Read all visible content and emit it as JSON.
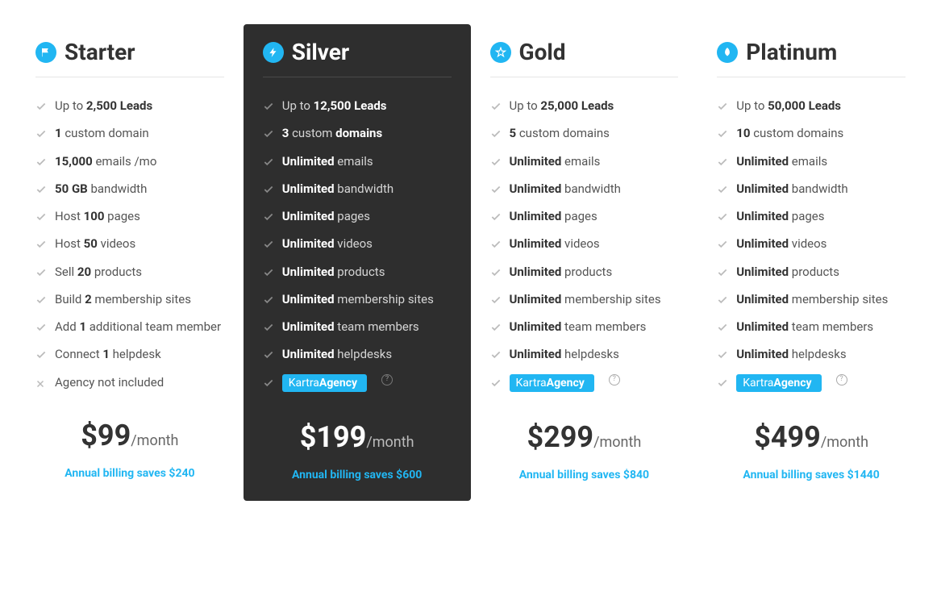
{
  "colors": {
    "accent": "#21b6f2",
    "featured_bg": "#2e2e2e",
    "text_dark": "#333333",
    "text_muted": "#555555",
    "check_light": "#bbbbbb",
    "check_dark": "#888888",
    "border_light": "#e5e5e5",
    "border_dark": "#4a4a4a"
  },
  "price_suffix": "/month",
  "plans": [
    {
      "id": "starter",
      "title": "Starter",
      "icon": "flag",
      "featured": false,
      "price": "$99",
      "annual_note": "Annual billing saves $240",
      "features": [
        {
          "type": "check",
          "html": "Up to <strong>2,500 Leads</strong>"
        },
        {
          "type": "check",
          "html": "<strong>1</strong> custom domain"
        },
        {
          "type": "check",
          "html": "<strong>15,000</strong> emails /mo"
        },
        {
          "type": "check",
          "html": "<strong>50 GB</strong> bandwidth"
        },
        {
          "type": "check",
          "html": "Host <strong>100</strong> pages"
        },
        {
          "type": "check",
          "html": "Host <strong>50</strong> videos"
        },
        {
          "type": "check",
          "html": "Sell <strong>20</strong> products"
        },
        {
          "type": "check",
          "html": "Build <strong>2</strong> membership sites"
        },
        {
          "type": "check",
          "html": "Add <strong>1</strong> additional team member"
        },
        {
          "type": "check",
          "html": "Connect <strong>1</strong> helpdesk"
        },
        {
          "type": "x",
          "html": "Agency not included"
        }
      ]
    },
    {
      "id": "silver",
      "title": "Silver",
      "icon": "bolt",
      "featured": true,
      "price": "$199",
      "annual_note": "Annual billing saves $600",
      "features": [
        {
          "type": "check",
          "html": "Up to <strong>12,500 Leads</strong>"
        },
        {
          "type": "check",
          "html": "<strong>3</strong> custom <strong>domains</strong>"
        },
        {
          "type": "check",
          "html": "<strong>Unlimited</strong> emails"
        },
        {
          "type": "check",
          "html": "<strong>Unlimited</strong> bandwidth"
        },
        {
          "type": "check",
          "html": "<strong>Unlimited</strong> pages"
        },
        {
          "type": "check",
          "html": "<strong>Unlimited</strong> videos"
        },
        {
          "type": "check",
          "html": "<strong>Unlimited</strong> products"
        },
        {
          "type": "check",
          "html": "<strong>Unlimited</strong> membership sites"
        },
        {
          "type": "check",
          "html": "<strong>Unlimited</strong> team members"
        },
        {
          "type": "check",
          "html": "<strong>Unlimited</strong> helpdesks"
        },
        {
          "type": "agency",
          "html": "Kartra <strong>Agency</strong>"
        }
      ]
    },
    {
      "id": "gold",
      "title": "Gold",
      "icon": "star",
      "featured": false,
      "price": "$299",
      "annual_note": "Annual billing saves $840",
      "features": [
        {
          "type": "check",
          "html": "Up to <strong>25,000 Leads</strong>"
        },
        {
          "type": "check",
          "html": "<strong>5</strong> custom domains"
        },
        {
          "type": "check",
          "html": "<strong>Unlimited</strong> emails"
        },
        {
          "type": "check",
          "html": "<strong>Unlimited</strong> bandwidth"
        },
        {
          "type": "check",
          "html": "<strong>Unlimited</strong> pages"
        },
        {
          "type": "check",
          "html": "<strong>Unlimited</strong> videos"
        },
        {
          "type": "check",
          "html": "<strong>Unlimited</strong> products"
        },
        {
          "type": "check",
          "html": "<strong>Unlimited</strong> membership sites"
        },
        {
          "type": "check",
          "html": "<strong>Unlimited</strong> team members"
        },
        {
          "type": "check",
          "html": "<strong>Unlimited</strong> helpdesks"
        },
        {
          "type": "agency",
          "html": "Kartra <strong>Agency</strong>"
        }
      ]
    },
    {
      "id": "platinum",
      "title": "Platinum",
      "icon": "rocket",
      "featured": false,
      "price": "$499",
      "annual_note": "Annual billing saves $1440",
      "features": [
        {
          "type": "check",
          "html": "Up to <strong>50,000 Leads</strong>"
        },
        {
          "type": "check",
          "html": "<strong>10</strong> custom domains"
        },
        {
          "type": "check",
          "html": "<strong>Unlimited</strong> emails"
        },
        {
          "type": "check",
          "html": "<strong>Unlimited</strong> bandwidth"
        },
        {
          "type": "check",
          "html": "<strong>Unlimited</strong> pages"
        },
        {
          "type": "check",
          "html": "<strong>Unlimited</strong> videos"
        },
        {
          "type": "check",
          "html": "<strong>Unlimited</strong> products"
        },
        {
          "type": "check",
          "html": "<strong>Unlimited</strong> membership sites"
        },
        {
          "type": "check",
          "html": "<strong>Unlimited</strong> team members"
        },
        {
          "type": "check",
          "html": "<strong>Unlimited</strong> helpdesks"
        },
        {
          "type": "agency",
          "html": "Kartra <strong>Agency</strong>"
        }
      ]
    }
  ]
}
